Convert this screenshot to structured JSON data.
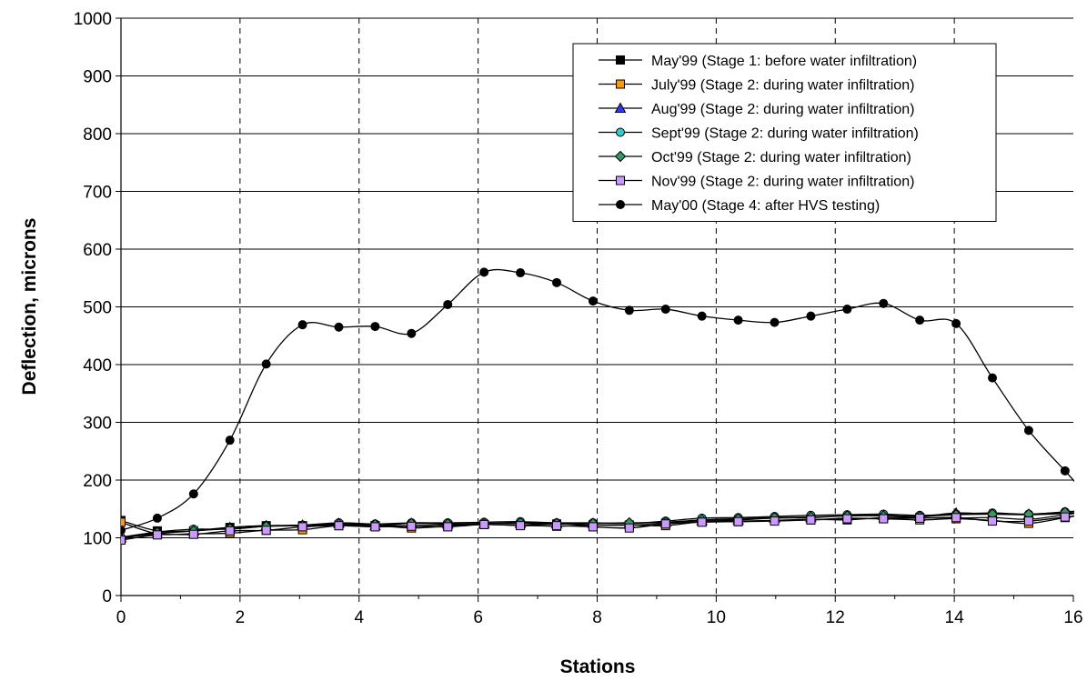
{
  "chart_data": {
    "type": "line",
    "title": "",
    "xlabel": "Stations",
    "ylabel": "Deflection, microns",
    "xlim": [
      0,
      16
    ],
    "ylim": [
      0,
      1000
    ],
    "xticks": [
      0,
      2,
      4,
      6,
      8,
      10,
      12,
      14,
      16
    ],
    "yticks": [
      0,
      100,
      200,
      300,
      400,
      500,
      600,
      700,
      800,
      900,
      1000
    ],
    "grid": "y-solid, x-dashed",
    "legend_position": "top-right",
    "x": [
      0,
      0.61,
      1.22,
      1.83,
      2.44,
      3.05,
      3.66,
      4.27,
      4.88,
      5.49,
      6.1,
      6.71,
      7.32,
      7.93,
      8.54,
      9.15,
      9.76,
      10.37,
      10.98,
      11.59,
      12.2,
      12.81,
      13.42,
      14.03,
      14.64,
      15.25,
      15.86
    ],
    "series": [
      {
        "name": "May'99 (Stage 1: before water infiltration)",
        "color": "#000000",
        "marker": "square",
        "values": [
          130,
          112,
          112,
          118,
          121,
          121,
          122,
          121,
          121,
          122,
          123,
          122,
          120,
          122,
          122,
          125,
          128,
          128,
          130,
          132,
          131,
          135,
          135,
          134,
          135,
          132,
          140
        ]
      },
      {
        "name": "July'99 (Stage 2: during water infiltration)",
        "color": "#ff9900",
        "marker": "square",
        "values": [
          127,
          107,
          107,
          108,
          113,
          114,
          121,
          121,
          117,
          120,
          123,
          122,
          124,
          122,
          122,
          121,
          128,
          129,
          130,
          131,
          134,
          133,
          131,
          133,
          130,
          125,
          135
        ]
      },
      {
        "name": "Aug'99 (Stage 2: during water infiltration)",
        "color": "#3333ff",
        "marker": "triangle",
        "values": [
          100,
          107,
          112,
          118,
          121,
          122,
          125,
          121,
          125,
          124,
          125,
          125,
          124,
          125,
          125,
          127,
          130,
          131,
          134,
          135,
          138,
          139,
          137,
          143,
          141,
          140,
          142
        ]
      },
      {
        "name": "Sept'99 (Stage 2: during water infiltration)",
        "color": "#33cccc",
        "marker": "circle",
        "values": [
          101,
          110,
          115,
          115,
          120,
          122,
          126,
          124,
          126,
          126,
          127,
          128,
          126,
          126,
          125,
          129,
          134,
          135,
          137,
          139,
          140,
          141,
          139,
          141,
          143,
          141,
          145
        ]
      },
      {
        "name": "Oct'99 (Stage 2: during water infiltration)",
        "color": "#339966",
        "marker": "diamond",
        "values": [
          98,
          109,
          112,
          116,
          120,
          121,
          124,
          123,
          125,
          124,
          125,
          126,
          125,
          125,
          126,
          127,
          131,
          133,
          135,
          136,
          138,
          138,
          137,
          140,
          141,
          141,
          144
        ]
      },
      {
        "name": "Nov'99 (Stage 2: during water infiltration)",
        "color": "#cc99ff",
        "marker": "square",
        "values": [
          96,
          105,
          106,
          112,
          113,
          119,
          121,
          119,
          120,
          119,
          123,
          121,
          121,
          119,
          117,
          124,
          127,
          128,
          129,
          131,
          133,
          133,
          134,
          135,
          129,
          129,
          136
        ]
      },
      {
        "name": "May'00 (Stage 4: after HVS testing)",
        "color": "#000000",
        "marker": "circle",
        "values": [
          113,
          134,
          176,
          269,
          401,
          469,
          465,
          466,
          454,
          504,
          560,
          559,
          542,
          510,
          494,
          496,
          484,
          477,
          473,
          484,
          496,
          506,
          477,
          471,
          377,
          286,
          216
        ]
      }
    ]
  }
}
